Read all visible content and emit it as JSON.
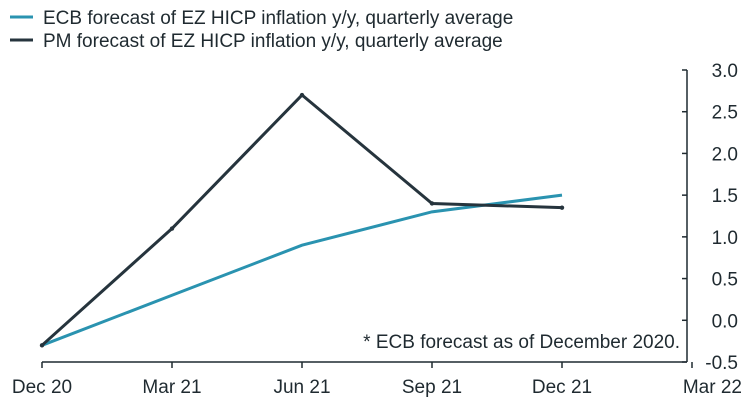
{
  "chart_data": {
    "type": "line",
    "title": "",
    "xlabel": "",
    "ylabel": "",
    "categories": [
      "Dec 20",
      "Mar 21",
      "Jun 21",
      "Sep 21",
      "Dec 21",
      "Mar 22"
    ],
    "ylim": [
      -0.5,
      3.0
    ],
    "y_ticks": [
      "3.0",
      "2.5",
      "2.0",
      "1.5",
      "1.0",
      "0.5",
      "0.0",
      "-0.5"
    ],
    "y_tick_values": [
      3.0,
      2.5,
      2.0,
      1.5,
      1.0,
      0.5,
      0.0,
      -0.5
    ],
    "y_axis_position": "right",
    "grid": false,
    "legend_position": "top-left",
    "series": [
      {
        "name": "ECB forecast of EZ HICP inflation y/y, quarterly average",
        "color": "#2a93b0",
        "marker": "none",
        "values": [
          -0.3,
          0.3,
          0.9,
          1.3,
          1.5,
          null
        ]
      },
      {
        "name": "PM forecast of EZ HICP inflation y/y, quarterly average",
        "color": "#26343d",
        "marker": "small-dot",
        "values": [
          -0.3,
          1.1,
          2.7,
          1.4,
          1.35,
          null
        ]
      }
    ],
    "annotation": "* ECB forecast as of December 2020."
  }
}
